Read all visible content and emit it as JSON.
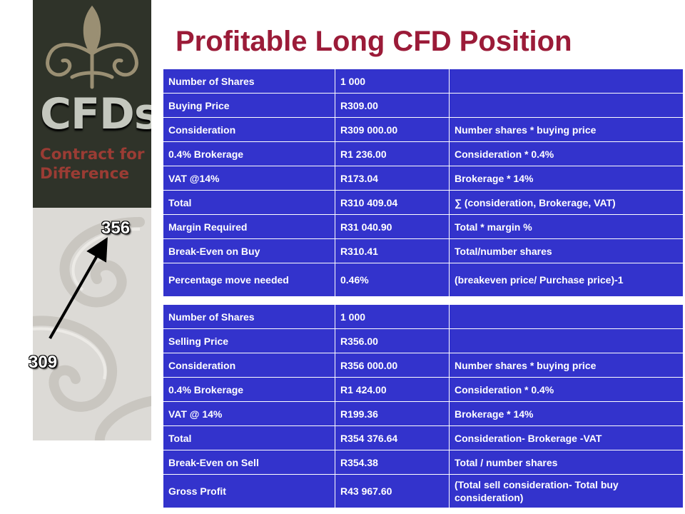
{
  "brand": {
    "logo_text": "CFDs",
    "tagline_line1": "Contract for",
    "tagline_line2": "Difference"
  },
  "slide_title": "Profitable Long CFD Position",
  "price_move": {
    "start_price": "309",
    "end_price": "356"
  },
  "buy_table": {
    "rows": [
      {
        "label": "Number of Shares",
        "value": "1 000",
        "formula": ""
      },
      {
        "label": "Buying Price",
        "value": "R309.00",
        "formula": ""
      },
      {
        "label": "Consideration",
        "value": "R309 000.00",
        "formula": "Number shares * buying price"
      },
      {
        "label": "0.4% Brokerage",
        "value": "R1 236.00",
        "formula": "Consideration * 0.4%"
      },
      {
        "label": "VAT @14%",
        "value": "R173.04",
        "formula": "Brokerage * 14%"
      },
      {
        "label": "Total",
        "value": "R310 409.04",
        "formula": "∑ (consideration, Brokerage, VAT)"
      },
      {
        "label": "Margin Required",
        "value": "R31 040.90",
        "formula": "Total * margin %"
      },
      {
        "label": "Break-Even on Buy",
        "value": "R310.41",
        "formula": "Total/number shares"
      },
      {
        "label": "Percentage move needed",
        "value": "0.46%",
        "formula": "(breakeven price/ Purchase price)-1"
      }
    ]
  },
  "sell_table": {
    "rows": [
      {
        "label": "Number of Shares",
        "value": "1 000",
        "formula": ""
      },
      {
        "label": "Selling Price",
        "value": "R356.00",
        "formula": ""
      },
      {
        "label": "Consideration",
        "value": "R356 000.00",
        "formula": "Number shares * buying price"
      },
      {
        "label": "0.4% Brokerage",
        "value": "R1 424.00",
        "formula": "Consideration * 0.4%"
      },
      {
        "label": "VAT @ 14%",
        "value": "R199.36",
        "formula": "Brokerage * 14%"
      },
      {
        "label": "Total",
        "value": "R354 376.64",
        "formula": "Consideration- Brokerage -VAT"
      },
      {
        "label": "Break-Even on Sell",
        "value": "R354.38",
        "formula": "Total / number shares"
      },
      {
        "label": "Gross Profit",
        "value": "R43 967.60",
        "formula": "(Total sell consideration- Total buy consideration)"
      }
    ]
  },
  "colors": {
    "table_bg": "#3333cc",
    "title": "#9b1b38",
    "banner_dark": "#2f3329",
    "tagline": "#9b3c34"
  }
}
